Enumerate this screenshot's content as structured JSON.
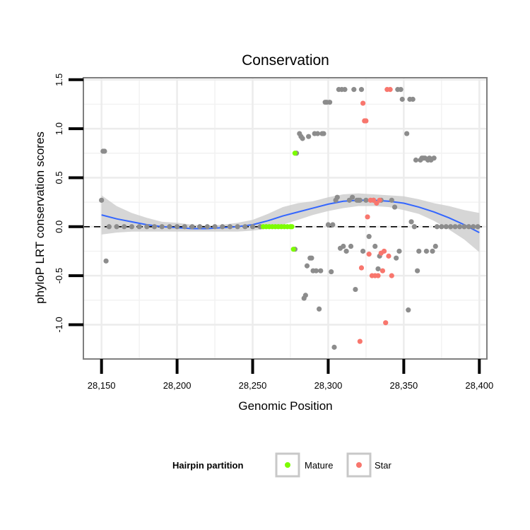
{
  "chart_data": {
    "type": "scatter",
    "title": "Conservation",
    "xlabel": "Genomic Position",
    "ylabel": "phyloP LRT conservation scores",
    "xlim": [
      28138,
      28405
    ],
    "ylim": [
      -1.35,
      1.52
    ],
    "x_ticks": [
      28150,
      28200,
      28250,
      28300,
      28350,
      28400
    ],
    "x_tick_labels": [
      "28,150",
      "28,200",
      "28,250",
      "28,300",
      "28,350",
      "28,400"
    ],
    "y_ticks": [
      -1.0,
      -0.5,
      0.0,
      0.5,
      1.0,
      1.5
    ],
    "y_tick_labels": [
      "-1.0",
      "-0.5",
      "0.0",
      "0.5",
      "1.0",
      "1.5"
    ],
    "reference_line": {
      "y": 0,
      "style": "dashed"
    },
    "grid": true,
    "legend": {
      "title": "Hairpin partition",
      "placement": "bottom",
      "entries": [
        {
          "label": "Mature",
          "color": "#7CFC00"
        },
        {
          "label": "Star",
          "color": "#F8766D"
        }
      ]
    },
    "colors": {
      "other": "#8c8c8c",
      "mature": "#7CFC00",
      "star": "#F8766D",
      "smooth": "#3366FF",
      "ribbon": "#cfcfcf"
    },
    "series": [
      {
        "name": "Other",
        "points": [
          [
            28150,
            0.27
          ],
          [
            28151,
            0.77
          ],
          [
            28152,
            0.77
          ],
          [
            28153,
            -0.35
          ],
          [
            28155,
            0.0
          ],
          [
            28160,
            0.0
          ],
          [
            28165,
            0.0
          ],
          [
            28170,
            0.0
          ],
          [
            28175,
            0.0
          ],
          [
            28180,
            0.0
          ],
          [
            28185,
            0.0
          ],
          [
            28190,
            0.0
          ],
          [
            28195,
            0.0
          ],
          [
            28200,
            0.0
          ],
          [
            28205,
            0.0
          ],
          [
            28210,
            0.0
          ],
          [
            28215,
            0.0
          ],
          [
            28220,
            0.0
          ],
          [
            28225,
            0.0
          ],
          [
            28230,
            0.0
          ],
          [
            28235,
            0.0
          ],
          [
            28240,
            0.0
          ],
          [
            28245,
            0.0
          ],
          [
            28250,
            0.0
          ],
          [
            28255,
            0.0
          ],
          [
            28278,
            -0.23
          ],
          [
            28279,
            0.75
          ],
          [
            28281,
            0.95
          ],
          [
            28282,
            0.92
          ],
          [
            28283,
            0.9
          ],
          [
            28284,
            -0.73
          ],
          [
            28285,
            -0.7
          ],
          [
            28286,
            -0.4
          ],
          [
            28287,
            0.92
          ],
          [
            28288,
            -0.32
          ],
          [
            28289,
            -0.32
          ],
          [
            28290,
            -0.45
          ],
          [
            28291,
            0.95
          ],
          [
            28292,
            -0.45
          ],
          [
            28293,
            0.95
          ],
          [
            28294,
            -0.84
          ],
          [
            28295,
            -0.45
          ],
          [
            28296,
            0.95
          ],
          [
            28297,
            0.95
          ],
          [
            28298,
            1.27
          ],
          [
            28299,
            1.27
          ],
          [
            28300,
            0.02
          ],
          [
            28301,
            1.27
          ],
          [
            28302,
            -0.46
          ],
          [
            28303,
            0.02
          ],
          [
            28304,
            -1.23
          ],
          [
            28305,
            0.27
          ],
          [
            28306,
            0.3
          ],
          [
            28307,
            1.4
          ],
          [
            28308,
            -0.22
          ],
          [
            28309,
            1.4
          ],
          [
            28310,
            -0.2
          ],
          [
            28311,
            1.4
          ],
          [
            28312,
            -0.25
          ],
          [
            28314,
            0.27
          ],
          [
            28315,
            -0.2
          ],
          [
            28316,
            0.3
          ],
          [
            28317,
            1.4
          ],
          [
            28318,
            -0.64
          ],
          [
            28319,
            0.27
          ],
          [
            28320,
            0.27
          ],
          [
            28321,
            0.27
          ],
          [
            28322,
            1.4
          ],
          [
            28323,
            -0.25
          ],
          [
            28325,
            0.27
          ],
          [
            28327,
            -0.1
          ],
          [
            28330,
            0.27
          ],
          [
            28331,
            -0.2
          ],
          [
            28333,
            -0.43
          ],
          [
            28334,
            -0.3
          ],
          [
            28335,
            0.27
          ],
          [
            28342,
            0.27
          ],
          [
            28344,
            0.2
          ],
          [
            28345,
            -0.32
          ],
          [
            28346,
            1.4
          ],
          [
            28347,
            -0.25
          ],
          [
            28348,
            1.4
          ],
          [
            28349,
            1.3
          ],
          [
            28352,
            0.95
          ],
          [
            28353,
            -0.85
          ],
          [
            28354,
            1.3
          ],
          [
            28355,
            0.05
          ],
          [
            28356,
            1.3
          ],
          [
            28357,
            0.0
          ],
          [
            28358,
            0.68
          ],
          [
            28359,
            -0.45
          ],
          [
            28360,
            -0.25
          ],
          [
            28361,
            0.68
          ],
          [
            28362,
            0.7
          ],
          [
            28363,
            0.7
          ],
          [
            28364,
            0.7
          ],
          [
            28365,
            -0.25
          ],
          [
            28366,
            0.68
          ],
          [
            28367,
            0.7
          ],
          [
            28368,
            0.68
          ],
          [
            28369,
            -0.25
          ],
          [
            28370,
            0.7
          ],
          [
            28371,
            -0.2
          ],
          [
            28372,
            0.0
          ],
          [
            28375,
            0.0
          ],
          [
            28378,
            0.0
          ],
          [
            28381,
            0.0
          ],
          [
            28384,
            0.0
          ],
          [
            28387,
            0.0
          ],
          [
            28390,
            0.0
          ],
          [
            28393,
            0.0
          ],
          [
            28396,
            0.0
          ],
          [
            28399,
            0.0
          ]
        ]
      },
      {
        "name": "Mature",
        "points": [
          [
            28257,
            0.0
          ],
          [
            28259,
            0.0
          ],
          [
            28261,
            0.0
          ],
          [
            28263,
            0.0
          ],
          [
            28265,
            0.0
          ],
          [
            28267,
            0.0
          ],
          [
            28269,
            0.0
          ],
          [
            28271,
            0.0
          ],
          [
            28273,
            0.0
          ],
          [
            28275,
            0.0
          ],
          [
            28276,
            0.0
          ],
          [
            28277,
            -0.23
          ],
          [
            28278,
            0.75
          ]
        ]
      },
      {
        "name": "Star",
        "points": [
          [
            28321,
            -1.17
          ],
          [
            28322,
            -0.42
          ],
          [
            28323,
            1.26
          ],
          [
            28324,
            1.08
          ],
          [
            28325,
            1.08
          ],
          [
            28326,
            0.1
          ],
          [
            28327,
            -0.28
          ],
          [
            28328,
            0.27
          ],
          [
            28329,
            -0.5
          ],
          [
            28330,
            0.27
          ],
          [
            28331,
            -0.5
          ],
          [
            28332,
            0.24
          ],
          [
            28333,
            -0.5
          ],
          [
            28334,
            0.27
          ],
          [
            28335,
            -0.27
          ],
          [
            28336,
            -0.45
          ],
          [
            28337,
            -0.25
          ],
          [
            28338,
            -0.98
          ],
          [
            28339,
            1.4
          ],
          [
            28340,
            -0.3
          ],
          [
            28341,
            1.4
          ],
          [
            28342,
            -0.5
          ]
        ]
      }
    ],
    "smooth": {
      "x": [
        28150,
        28160,
        28170,
        28180,
        28190,
        28200,
        28210,
        28220,
        28230,
        28240,
        28250,
        28260,
        28270,
        28280,
        28290,
        28300,
        28310,
        28320,
        28330,
        28340,
        28350,
        28360,
        28370,
        28380,
        28390,
        28400
      ],
      "y": [
        0.12,
        0.08,
        0.05,
        0.02,
        0.0,
        -0.01,
        -0.02,
        -0.02,
        -0.01,
        0.0,
        0.02,
        0.06,
        0.11,
        0.15,
        0.19,
        0.23,
        0.26,
        0.27,
        0.27,
        0.26,
        0.24,
        0.2,
        0.15,
        0.09,
        0.02,
        -0.06
      ],
      "lower": [
        -0.08,
        -0.06,
        -0.05,
        -0.05,
        -0.05,
        -0.05,
        -0.05,
        -0.05,
        -0.05,
        -0.05,
        -0.04,
        -0.02,
        0.02,
        0.07,
        0.12,
        0.16,
        0.19,
        0.21,
        0.21,
        0.2,
        0.17,
        0.13,
        0.06,
        -0.03,
        -0.13,
        -0.26
      ],
      "upper": [
        0.32,
        0.21,
        0.14,
        0.09,
        0.05,
        0.04,
        0.02,
        0.01,
        0.02,
        0.04,
        0.07,
        0.13,
        0.2,
        0.24,
        0.26,
        0.3,
        0.33,
        0.34,
        0.33,
        0.32,
        0.31,
        0.28,
        0.24,
        0.21,
        0.17,
        0.14
      ]
    }
  }
}
